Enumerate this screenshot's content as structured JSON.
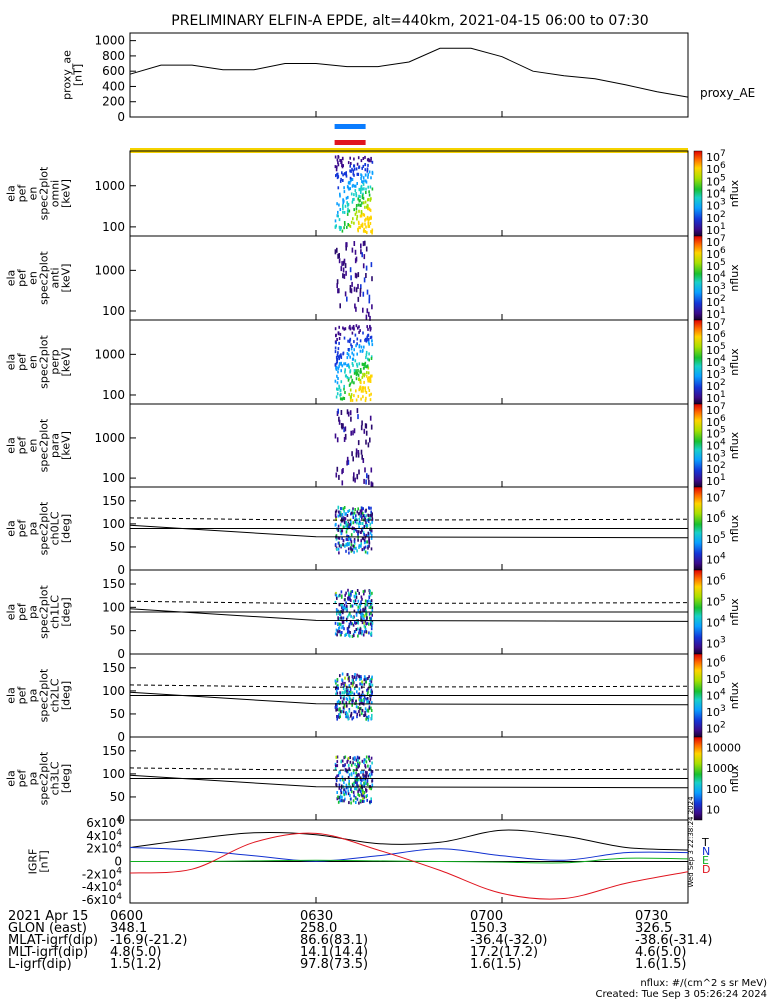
{
  "title": "PRELIMINARY ELFIN-A EPDE, alt=440km, 2021-04-15 06:00 to 07:30",
  "chart_data": [
    {
      "type": "line",
      "panel": "proxy_ae",
      "ylabel": [
        "proxy_ae",
        "[nT]"
      ],
      "legend": "proxy_AE",
      "yticks": [
        "0",
        "200",
        "400",
        "600",
        "800",
        "1000"
      ],
      "ylim": [
        0,
        1100
      ],
      "x_minutes": [
        0,
        5,
        10,
        15,
        20,
        25,
        30,
        35,
        40,
        45,
        50,
        55,
        60,
        65,
        70,
        75,
        80,
        85,
        90
      ],
      "values": [
        560,
        680,
        680,
        620,
        620,
        700,
        700,
        660,
        660,
        720,
        900,
        900,
        790,
        600,
        540,
        500,
        420,
        330,
        260
      ],
      "color": "#000000"
    },
    {
      "type": "bars",
      "panel": "science_zone_bars",
      "bars": [
        {
          "color": "#0a7cff",
          "x_start": 33,
          "x_end": 38
        },
        {
          "color": "#e0141e",
          "x_start": 33,
          "x_end": 38
        },
        {
          "color": "#f5d300",
          "x_start": 0,
          "x_end": 90
        }
      ]
    },
    {
      "type": "heatmap",
      "panel": "ela_pef_en_spec2plot_omni",
      "ylabel": [
        "ela",
        "pef",
        "en",
        "spec2plot",
        "omni",
        "[keV]"
      ],
      "yticks": [
        "100",
        "1000"
      ],
      "ylog": true,
      "ylim": [
        60,
        7000
      ],
      "colorbar": {
        "label": "nflux",
        "ticks": [
          "10",
          "10",
          "10",
          "10",
          "10",
          "10",
          "10"
        ],
        "exps": [
          "1",
          "2",
          "3",
          "4",
          "5",
          "6",
          "7"
        ]
      }
    },
    {
      "type": "heatmap",
      "panel": "ela_pef_en_spec2plot_anti",
      "ylabel": [
        "ela",
        "pef",
        "en",
        "spec2plot",
        "anti",
        "[keV]"
      ],
      "yticks": [
        "100",
        "1000"
      ],
      "ylog": true,
      "ylim": [
        60,
        7000
      ],
      "colorbar": {
        "label": "nflux",
        "ticks": [
          "10",
          "10",
          "10",
          "10",
          "10",
          "10",
          "10"
        ],
        "exps": [
          "1",
          "2",
          "3",
          "4",
          "5",
          "6",
          "7"
        ]
      }
    },
    {
      "type": "heatmap",
      "panel": "ela_pef_en_spec2plot_perp",
      "ylabel": [
        "ela",
        "pef",
        "en",
        "spec2plot",
        "perp",
        "[keV]"
      ],
      "yticks": [
        "100",
        "1000"
      ],
      "ylog": true,
      "ylim": [
        60,
        7000
      ],
      "colorbar": {
        "label": "nflux",
        "ticks": [
          "10",
          "10",
          "10",
          "10",
          "10",
          "10",
          "10"
        ],
        "exps": [
          "1",
          "2",
          "3",
          "4",
          "5",
          "6",
          "7"
        ]
      }
    },
    {
      "type": "heatmap",
      "panel": "ela_pef_en_spec2plot_para",
      "ylabel": [
        "ela",
        "pef",
        "en",
        "spec2plot",
        "para",
        "[keV]"
      ],
      "yticks": [
        "100",
        "1000"
      ],
      "ylog": true,
      "ylim": [
        60,
        7000
      ],
      "colorbar": {
        "label": "nflux",
        "ticks": [
          "10",
          "10",
          "10",
          "10",
          "10",
          "10",
          "10"
        ],
        "exps": [
          "1",
          "2",
          "3",
          "4",
          "5",
          "6",
          "7"
        ]
      }
    },
    {
      "type": "heatmap",
      "panel": "ela_pef_pa_spec2plot_ch0LC",
      "ylabel": [
        "ela",
        "pef",
        "pa",
        "spec2plot",
        "ch0LC",
        "[deg]"
      ],
      "yticks": [
        "0",
        "50",
        "100",
        "150"
      ],
      "ylim": [
        0,
        180
      ],
      "colorbar": {
        "label": "nflux",
        "ticks": [
          "10",
          "10",
          "10",
          "10"
        ],
        "exps": [
          "4",
          "5",
          "6",
          "7"
        ]
      }
    },
    {
      "type": "heatmap",
      "panel": "ela_pef_pa_spec2plot_ch1LC",
      "ylabel": [
        "ela",
        "pef",
        "pa",
        "spec2plot",
        "ch1LC",
        "[deg]"
      ],
      "yticks": [
        "0",
        "50",
        "100",
        "150"
      ],
      "ylim": [
        0,
        180
      ],
      "colorbar": {
        "label": "nflux",
        "ticks": [
          "10",
          "10",
          "10",
          "10"
        ],
        "exps": [
          "3",
          "4",
          "5",
          "6"
        ]
      }
    },
    {
      "type": "heatmap",
      "panel": "ela_pef_pa_spec2plot_ch2LC",
      "ylabel": [
        "ela",
        "pef",
        "pa",
        "spec2plot",
        "ch2LC",
        "[deg]"
      ],
      "yticks": [
        "0",
        "50",
        "100",
        "150"
      ],
      "ylim": [
        0,
        180
      ],
      "colorbar": {
        "label": "nflux",
        "ticks": [
          "10",
          "10",
          "10",
          "10",
          "10"
        ],
        "exps": [
          "2",
          "3",
          "4",
          "5",
          "6"
        ]
      }
    },
    {
      "type": "heatmap",
      "panel": "ela_pef_pa_spec2plot_ch3LC",
      "ylabel": [
        "ela",
        "pef",
        "pa",
        "spec2plot",
        "ch3LC",
        "[deg]"
      ],
      "yticks": [
        "0",
        "50",
        "100",
        "150"
      ],
      "ylim": [
        0,
        180
      ],
      "colorbar": {
        "label": "nflux",
        "ticks": [
          "10",
          "100",
          "1000",
          "10000"
        ],
        "exps": [
          "",
          "",
          "",
          ""
        ]
      }
    },
    {
      "type": "line",
      "panel": "igrf",
      "ylabel": [
        "IGRF",
        "[nT]"
      ],
      "yticks": [
        "-6x10",
        "-4x10",
        "-2x10",
        "0",
        "2x10",
        "4x10",
        "6x10"
      ],
      "ytick_exp": "4",
      "ylim": [
        -65000,
        65000
      ],
      "x_minutes": [
        0,
        10,
        20,
        30,
        40,
        50,
        60,
        70,
        80,
        90
      ],
      "series": [
        {
          "name": "T",
          "color": "#000000",
          "values": [
            22000,
            35000,
            45000,
            42000,
            28000,
            30000,
            49000,
            40000,
            22000,
            18000
          ]
        },
        {
          "name": "N",
          "color": "#1030d0",
          "values": [
            22000,
            18000,
            9000,
            500,
            9000,
            20000,
            9000,
            2000,
            14000,
            14000
          ]
        },
        {
          "name": "E",
          "color": "#10b020",
          "values": [
            0,
            0,
            1000,
            2000,
            1000,
            0,
            -1000,
            -2000,
            5000,
            4000
          ]
        },
        {
          "name": "D",
          "color": "#e0141e",
          "values": [
            -18000,
            -12000,
            30000,
            44000,
            18000,
            -14000,
            -50000,
            -58000,
            -34000,
            -16000
          ]
        }
      ],
      "side_note": "Wed Sep 3 22:38:24 2024"
    }
  ],
  "x_axis": {
    "row_labels": [
      "2021 Apr 15",
      "GLON (east)",
      "MLAT-igrf(dip)",
      "MLT-igrf(dip)",
      "L-igrf(dip)"
    ],
    "columns": [
      [
        "0600",
        "348.1",
        "-16.9(-21.2)",
        "4.8(5.0)",
        "1.5(1.2)"
      ],
      [
        "0630",
        "258.0",
        "86.6(83.1)",
        "14.1(14.4)",
        "97.8(73.5)"
      ],
      [
        "0700",
        "150.3",
        "-36.4(-32.0)",
        "17.2(17.2)",
        "1.6(1.5)"
      ],
      [
        "0730",
        "326.5",
        "-38.6(-31.4)",
        "4.6(5.0)",
        "1.6(1.5)"
      ]
    ]
  },
  "footer": {
    "units": "nflux: #/(cm^2 s sr MeV)",
    "created": "Created: Tue Sep  3 05:26:24 2024"
  }
}
